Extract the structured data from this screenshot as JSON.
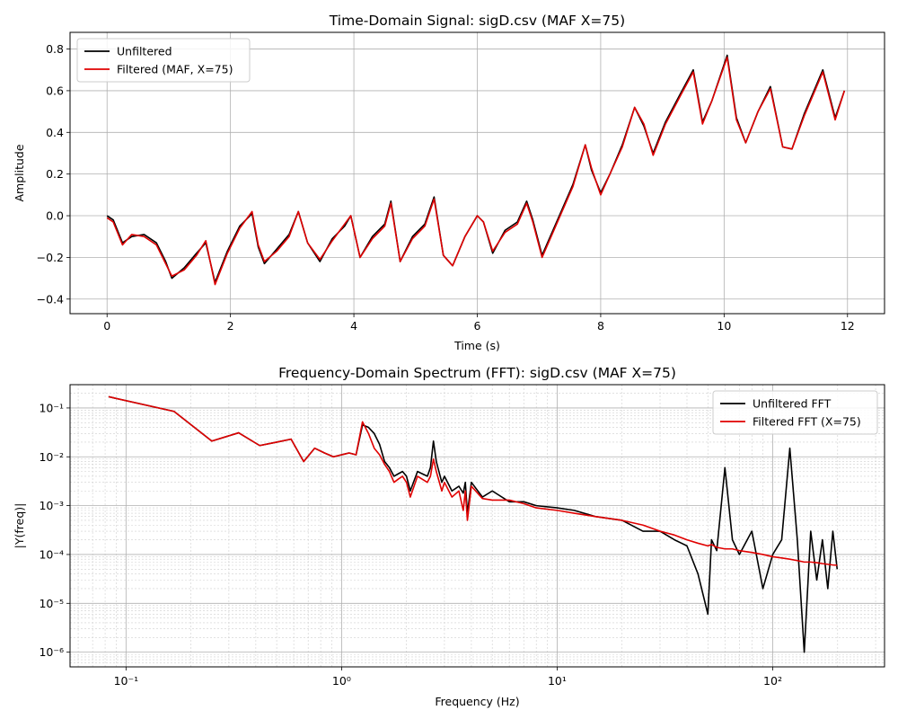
{
  "chart_data": [
    {
      "type": "line",
      "title": "Time-Domain Signal: sigD.csv (MAF X=75)",
      "xlabel": "Time (s)",
      "ylabel": "Amplitude",
      "xlim": [
        -0.6,
        12.6
      ],
      "ylim": [
        -0.47,
        0.88
      ],
      "xticks": [
        0,
        2,
        4,
        6,
        8,
        10,
        12
      ],
      "xtick_labels": [
        "0",
        "2",
        "4",
        "6",
        "8",
        "10",
        "12"
      ],
      "yticks": [
        -0.4,
        -0.2,
        0.0,
        0.2,
        0.4,
        0.6,
        0.8
      ],
      "ytick_labels": [
        "−0.4",
        "−0.2",
        "0.0",
        "0.2",
        "0.4",
        "0.6",
        "0.8"
      ],
      "grid": true,
      "legend_position": "upper-left",
      "series": [
        {
          "name": "Unfiltered",
          "color": "#000000",
          "x": [
            0.0,
            0.1,
            0.25,
            0.4,
            0.6,
            0.8,
            0.95,
            1.05,
            1.25,
            1.45,
            1.6,
            1.75,
            1.95,
            2.15,
            2.35,
            2.45,
            2.55,
            2.75,
            2.95,
            3.1,
            3.25,
            3.45,
            3.65,
            3.85,
            3.95,
            4.1,
            4.3,
            4.5,
            4.6,
            4.75,
            4.95,
            5.15,
            5.3,
            5.45,
            5.6,
            5.8,
            6.0,
            6.1,
            6.25,
            6.45,
            6.65,
            6.8,
            6.9,
            7.05,
            7.3,
            7.55,
            7.75,
            7.85,
            8.0,
            8.15,
            8.35,
            8.55,
            8.7,
            8.85,
            9.05,
            9.3,
            9.5,
            9.65,
            9.8,
            10.05,
            10.2,
            10.35,
            10.55,
            10.75,
            10.95,
            11.1,
            11.3,
            11.6,
            11.8,
            11.95
          ],
          "y": [
            0.0,
            -0.02,
            -0.13,
            -0.1,
            -0.09,
            -0.13,
            -0.22,
            -0.3,
            -0.25,
            -0.18,
            -0.13,
            -0.32,
            -0.17,
            -0.05,
            0.01,
            -0.15,
            -0.23,
            -0.16,
            -0.09,
            0.02,
            -0.13,
            -0.22,
            -0.11,
            -0.05,
            0.0,
            -0.2,
            -0.1,
            -0.04,
            0.07,
            -0.22,
            -0.1,
            -0.04,
            0.09,
            -0.19,
            -0.24,
            -0.1,
            0.0,
            -0.03,
            -0.18,
            -0.07,
            -0.03,
            0.07,
            -0.02,
            -0.19,
            -0.02,
            0.15,
            0.34,
            0.22,
            0.11,
            0.2,
            0.34,
            0.52,
            0.43,
            0.3,
            0.45,
            0.59,
            0.7,
            0.45,
            0.55,
            0.77,
            0.47,
            0.35,
            0.5,
            0.62,
            0.33,
            0.32,
            0.49,
            0.7,
            0.47,
            0.6
          ]
        },
        {
          "name": "Filtered (MAF, X=75)",
          "color": "#e00000",
          "x": [
            0.0,
            0.1,
            0.25,
            0.4,
            0.6,
            0.8,
            0.95,
            1.05,
            1.25,
            1.45,
            1.6,
            1.75,
            1.95,
            2.15,
            2.35,
            2.45,
            2.55,
            2.75,
            2.95,
            3.1,
            3.25,
            3.45,
            3.65,
            3.85,
            3.95,
            4.1,
            4.3,
            4.5,
            4.6,
            4.75,
            4.95,
            5.15,
            5.3,
            5.45,
            5.6,
            5.8,
            6.0,
            6.1,
            6.25,
            6.45,
            6.65,
            6.8,
            6.9,
            7.05,
            7.3,
            7.55,
            7.75,
            7.85,
            8.0,
            8.15,
            8.35,
            8.55,
            8.7,
            8.85,
            9.05,
            9.3,
            9.5,
            9.65,
            9.8,
            10.05,
            10.2,
            10.35,
            10.55,
            10.75,
            10.95,
            11.1,
            11.3,
            11.6,
            11.8,
            11.95
          ],
          "y": [
            -0.01,
            -0.03,
            -0.14,
            -0.09,
            -0.1,
            -0.14,
            -0.23,
            -0.29,
            -0.26,
            -0.19,
            -0.12,
            -0.33,
            -0.18,
            -0.06,
            0.02,
            -0.14,
            -0.22,
            -0.17,
            -0.1,
            0.02,
            -0.13,
            -0.21,
            -0.12,
            -0.04,
            0.0,
            -0.2,
            -0.11,
            -0.05,
            0.06,
            -0.22,
            -0.11,
            -0.05,
            0.08,
            -0.19,
            -0.24,
            -0.1,
            0.0,
            -0.03,
            -0.17,
            -0.08,
            -0.04,
            0.06,
            -0.03,
            -0.2,
            -0.03,
            0.14,
            0.34,
            0.23,
            0.1,
            0.2,
            0.33,
            0.52,
            0.44,
            0.29,
            0.44,
            0.58,
            0.69,
            0.44,
            0.55,
            0.76,
            0.46,
            0.35,
            0.5,
            0.61,
            0.33,
            0.32,
            0.48,
            0.69,
            0.46,
            0.6
          ]
        }
      ]
    },
    {
      "type": "line",
      "title": "Frequency-Domain Spectrum (FFT): sigD.csv (MAF X=75)",
      "xlabel": "Frequency (Hz)",
      "ylabel": "|Y(freq)|",
      "xscale": "log",
      "yscale": "log",
      "xlim": [
        0.055,
        330
      ],
      "ylim": [
        5e-07,
        0.3
      ],
      "xticks": [
        0.1,
        1,
        10,
        100
      ],
      "xtick_labels": [
        "10⁻¹",
        "10⁰",
        "10¹",
        "10²"
      ],
      "yticks": [
        1e-06,
        1e-05,
        0.0001,
        0.001,
        0.01,
        0.1
      ],
      "ytick_labels": [
        "10⁻⁶",
        "10⁻⁵",
        "10⁻⁴",
        "10⁻³",
        "10⁻²",
        "10⁻¹"
      ],
      "grid": true,
      "legend_position": "upper-right",
      "series": [
        {
          "name": "Unfiltered FFT",
          "color": "#000000",
          "x": [
            0.083,
            0.167,
            0.25,
            0.333,
            0.417,
            0.5,
            0.583,
            0.667,
            0.75,
            0.833,
            0.917,
            1.0,
            1.083,
            1.167,
            1.25,
            1.333,
            1.417,
            1.5,
            1.583,
            1.667,
            1.75,
            1.833,
            1.917,
            2.0,
            2.083,
            2.25,
            2.5,
            2.583,
            2.667,
            2.75,
            2.917,
            3.0,
            3.25,
            3.5,
            3.667,
            3.75,
            3.833,
            4.0,
            4.5,
            5.0,
            6.0,
            7.0,
            8.0,
            10.0,
            12.0,
            15.0,
            20.0,
            25.0,
            30.0,
            35.0,
            40.0,
            45.0,
            50.0,
            52.0,
            55.0,
            60.0,
            65.0,
            70.0,
            80.0,
            90.0,
            100.0,
            110.0,
            120.0,
            130.0,
            140.0,
            150.0,
            160.0,
            170.0,
            180.0,
            190.0,
            199.0
          ],
          "y": [
            0.17,
            0.085,
            0.021,
            0.031,
            0.017,
            0.02,
            0.023,
            0.008,
            0.015,
            0.012,
            0.01,
            0.011,
            0.012,
            0.011,
            0.045,
            0.04,
            0.03,
            0.018,
            0.008,
            0.006,
            0.004,
            0.0045,
            0.005,
            0.004,
            0.002,
            0.005,
            0.004,
            0.006,
            0.021,
            0.008,
            0.003,
            0.004,
            0.002,
            0.0025,
            0.0018,
            0.003,
            0.0007,
            0.003,
            0.0015,
            0.002,
            0.0012,
            0.0012,
            0.001,
            0.0009,
            0.0008,
            0.0006,
            0.0005,
            0.0003,
            0.0003,
            0.0002,
            0.00015,
            4e-05,
            6e-06,
            0.0002,
            0.00012,
            0.006,
            0.0002,
            0.0001,
            0.0003,
            2e-05,
            0.0001,
            0.0002,
            0.015,
            0.0002,
            1e-06,
            0.0003,
            3e-05,
            0.0002,
            2e-05,
            0.0003,
            5e-05
          ]
        },
        {
          "name": "Filtered FFT (X=75)",
          "color": "#e00000",
          "x": [
            0.083,
            0.167,
            0.25,
            0.333,
            0.417,
            0.5,
            0.583,
            0.667,
            0.75,
            0.833,
            0.917,
            1.0,
            1.083,
            1.167,
            1.25,
            1.333,
            1.417,
            1.5,
            1.583,
            1.667,
            1.75,
            1.833,
            1.917,
            2.0,
            2.083,
            2.25,
            2.5,
            2.583,
            2.667,
            2.75,
            2.917,
            3.0,
            3.25,
            3.5,
            3.667,
            3.75,
            3.833,
            4.0,
            4.5,
            5.0,
            6.0,
            7.0,
            8.0,
            10.0,
            12.0,
            15.0,
            20.0,
            25.0,
            30.0,
            35.0,
            40.0,
            45.0,
            50.0,
            52.0,
            55.0,
            60.0,
            65.0,
            70.0,
            80.0,
            90.0,
            100.0,
            110.0,
            120.0,
            130.0,
            140.0,
            150.0,
            160.0,
            170.0,
            180.0,
            190.0,
            199.0
          ],
          "y": [
            0.17,
            0.085,
            0.021,
            0.031,
            0.017,
            0.02,
            0.023,
            0.008,
            0.015,
            0.012,
            0.01,
            0.011,
            0.012,
            0.011,
            0.052,
            0.03,
            0.015,
            0.011,
            0.007,
            0.005,
            0.003,
            0.0035,
            0.004,
            0.003,
            0.0015,
            0.004,
            0.003,
            0.004,
            0.009,
            0.005,
            0.002,
            0.003,
            0.0015,
            0.002,
            0.0008,
            0.002,
            0.0005,
            0.0025,
            0.0014,
            0.0013,
            0.0013,
            0.0011,
            0.0009,
            0.0008,
            0.0007,
            0.0006,
            0.0005,
            0.0004,
            0.0003,
            0.00025,
            0.0002,
            0.00017,
            0.00015,
            0.00016,
            0.00014,
            0.00013,
            0.00013,
            0.00012,
            0.00011,
            0.0001,
            9e-05,
            8.5e-05,
            8e-05,
            7.5e-05,
            7e-05,
            7e-05,
            6.8e-05,
            6.5e-05,
            6.3e-05,
            6.1e-05,
            6e-05
          ]
        }
      ]
    }
  ]
}
